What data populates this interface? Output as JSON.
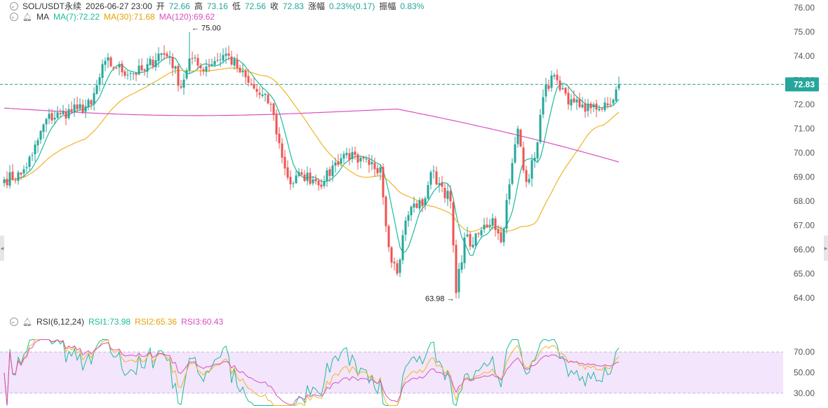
{
  "header": {
    "symbol": "SOL/USDT永续",
    "datetime": "2026-06-27 23:00",
    "open_label": "开",
    "open": "72.66",
    "high_label": "高",
    "high": "73.16",
    "low_label": "低",
    "low": "72.56",
    "close_label": "收",
    "close": "72.83",
    "change_label": "涨幅",
    "change": "0.23%(0.17)",
    "amplitude_label": "振幅",
    "amplitude": "0.83%"
  },
  "ma_legend": {
    "label": "MA",
    "items": [
      {
        "text": "MA(7):72.22",
        "color": "#1abc9c"
      },
      {
        "text": "MA(30):71.68",
        "color": "#f0b429"
      },
      {
        "text": "MA(120):69.62",
        "color": "#d94fbf"
      }
    ]
  },
  "rsi_legend": {
    "label": "RSI(6,12,24)",
    "items": [
      {
        "text": "RSI1:73.98",
        "color": "#1abc9c"
      },
      {
        "text": "RSI2:65.36",
        "color": "#f0b429"
      },
      {
        "text": "RSI3:60.43",
        "color": "#d94fbf"
      }
    ]
  },
  "colors": {
    "up": "#26a69a",
    "down": "#ef5350",
    "ma7": "#1abc9c",
    "ma30": "#f0b429",
    "ma120": "#d94fbf",
    "rsi_band": "#f3e5fb",
    "current_price": "#26a69a"
  },
  "chart_data": [
    {
      "type": "candlestick",
      "price_axis": {
        "min": 63.7,
        "max": 76.3,
        "ticks": [
          "76.00",
          "75.00",
          "74.00",
          "73.00",
          "72.00",
          "71.00",
          "70.00",
          "69.00",
          "68.00",
          "67.00",
          "66.00",
          "65.00",
          "64.00"
        ]
      },
      "current_price": 72.83,
      "current_price_label": "72.83",
      "annotations": [
        {
          "text": "← 75.00",
          "index": 66,
          "price": 75.0
        },
        {
          "text": "63.98 →",
          "index": 161,
          "price": 63.98
        }
      ],
      "close_anchors": [
        [
          0,
          68.9
        ],
        [
          6,
          69.1
        ],
        [
          10,
          69.9
        ],
        [
          15,
          71.4
        ],
        [
          20,
          71.6
        ],
        [
          26,
          71.8
        ],
        [
          31,
          72.0
        ],
        [
          36,
          73.8
        ],
        [
          40,
          73.5
        ],
        [
          45,
          73.3
        ],
        [
          50,
          73.4
        ],
        [
          55,
          74.1
        ],
        [
          59,
          74.0
        ],
        [
          63,
          72.7
        ],
        [
          66,
          73.9
        ],
        [
          70,
          73.5
        ],
        [
          75,
          73.8
        ],
        [
          79,
          74.1
        ],
        [
          83,
          73.5
        ],
        [
          87,
          72.9
        ],
        [
          91,
          72.4
        ],
        [
          95,
          72.0
        ],
        [
          99,
          69.8
        ],
        [
          102,
          68.7
        ],
        [
          106,
          69.1
        ],
        [
          110,
          68.9
        ],
        [
          114,
          68.8
        ],
        [
          118,
          69.6
        ],
        [
          122,
          70.0
        ],
        [
          126,
          69.6
        ],
        [
          130,
          69.5
        ],
        [
          134,
          69.4
        ],
        [
          137,
          66.1
        ],
        [
          140,
          65.0
        ],
        [
          143,
          67.2
        ],
        [
          146,
          67.9
        ],
        [
          149,
          67.8
        ],
        [
          152,
          69.2
        ],
        [
          156,
          68.6
        ],
        [
          159,
          68.0
        ],
        [
          161,
          64.2
        ],
        [
          164,
          66.5
        ],
        [
          167,
          66.2
        ],
        [
          170,
          66.8
        ],
        [
          174,
          67.3
        ],
        [
          177,
          66.3
        ],
        [
          180,
          68.7
        ],
        [
          183,
          71.0
        ],
        [
          186,
          68.8
        ],
        [
          189,
          69.8
        ],
        [
          192,
          72.3
        ],
        [
          195,
          73.2
        ],
        [
          198,
          72.6
        ],
        [
          201,
          72.0
        ],
        [
          204,
          72.2
        ],
        [
          207,
          71.7
        ],
        [
          210,
          72.0
        ],
        [
          213,
          71.8
        ],
        [
          216,
          72.0
        ],
        [
          219,
          72.83
        ]
      ],
      "moving_averages": [
        {
          "name": "MA(7)",
          "value": 72.22
        },
        {
          "name": "MA(30)",
          "value": 71.68
        },
        {
          "name": "MA(120)",
          "value": 69.62
        }
      ]
    },
    {
      "type": "line",
      "indicator": "RSI",
      "axis": {
        "min": 17,
        "max": 83,
        "ticks": [
          "70.00",
          "50.00",
          "30.00"
        ]
      },
      "band": [
        30,
        70
      ],
      "series": [
        {
          "name": "RSI1",
          "value": 73.98
        },
        {
          "name": "RSI2",
          "value": 65.36
        },
        {
          "name": "RSI3",
          "value": 60.43
        }
      ]
    }
  ]
}
